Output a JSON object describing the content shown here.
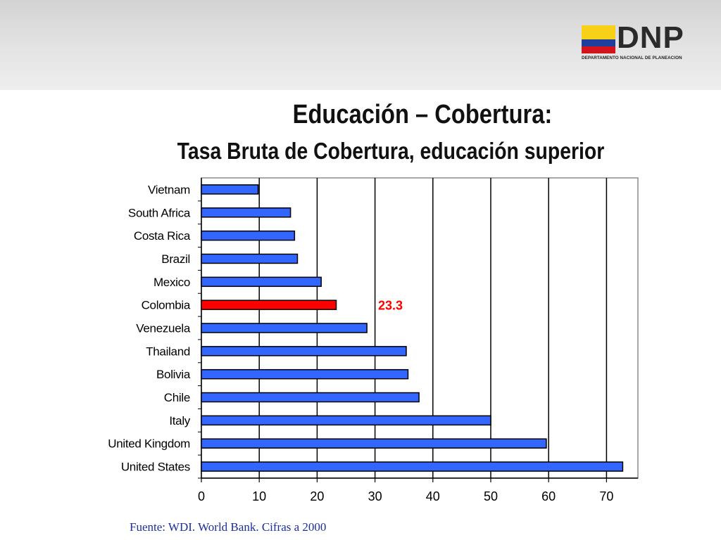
{
  "header": {
    "logo_text": "DNP",
    "logo_subtitle": "DEPARTAMENTO NACIONAL DE PLANEACION"
  },
  "slide": {
    "title": "Educación – Cobertura:",
    "subtitle": "Tasa Bruta de Cobertura, educación superior",
    "source": "Fuente: WDI. World Bank. Cifras a 2000"
  },
  "colors": {
    "bar": "#3366ff",
    "highlight_bar": "#ff0000",
    "highlight_label": "#ff0000",
    "source_text": "#1c2f9c"
  },
  "chart_data": {
    "type": "bar",
    "orientation": "horizontal",
    "categories": [
      "Vietnam",
      "South Africa",
      "Costa Rica",
      "Brazil",
      "Mexico",
      "Colombia",
      "Venezuela",
      "Thailand",
      "Bolivia",
      "Chile",
      "Italy",
      "United Kingdom",
      "United States"
    ],
    "values": [
      9.8,
      15.4,
      16.1,
      16.6,
      20.7,
      23.3,
      28.6,
      35.4,
      35.7,
      37.6,
      50.0,
      59.6,
      72.8
    ],
    "highlight": {
      "category": "Colombia",
      "label": "23.3"
    },
    "xlim": [
      0,
      75
    ],
    "xticks": [
      "0",
      "10",
      "20",
      "30",
      "40",
      "50",
      "60",
      "70"
    ],
    "grid": "vertical",
    "legend": "none"
  }
}
